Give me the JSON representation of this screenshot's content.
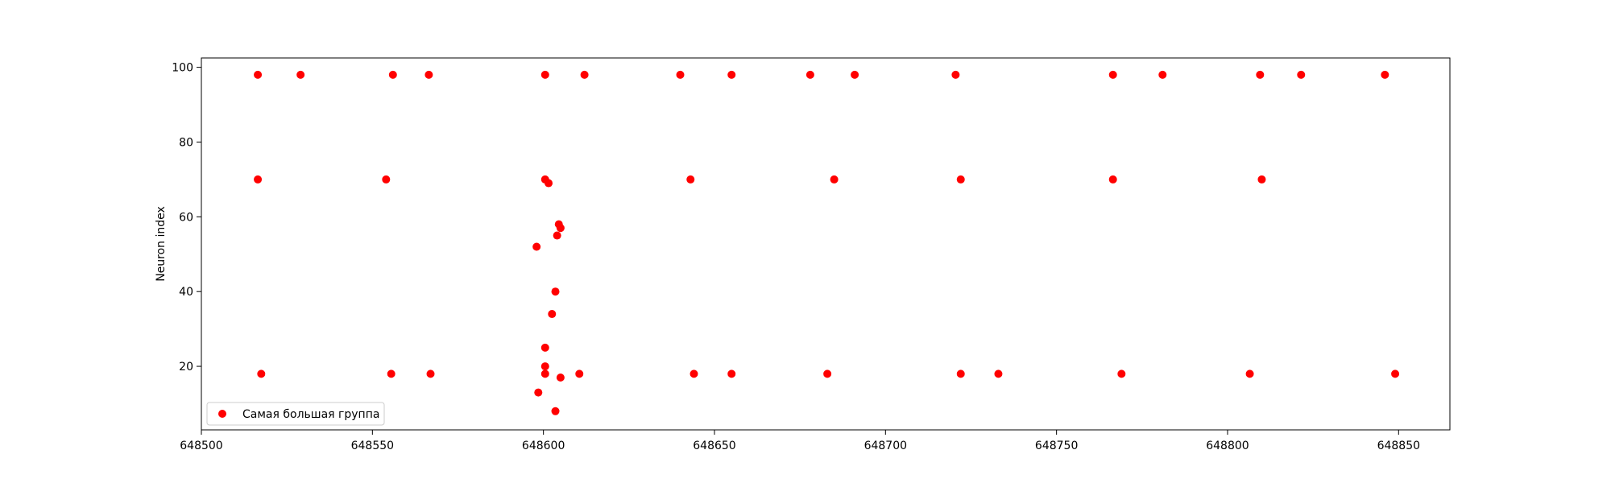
{
  "chart_data": {
    "type": "scatter",
    "title": "",
    "xlabel": "",
    "ylabel": "Neuron index",
    "xlim": [
      648500,
      648865
    ],
    "ylim": [
      3,
      102.5
    ],
    "xticks": [
      648500,
      648550,
      648600,
      648650,
      648700,
      648750,
      648800,
      648850
    ],
    "yticks": [
      20,
      40,
      60,
      80,
      100
    ],
    "grid": false,
    "legend": {
      "position": "lower-left",
      "entries": [
        {
          "label": "Самая большая группа",
          "color": "#ff0000"
        }
      ]
    },
    "series": [
      {
        "name": "Самая большая группа",
        "color": "#ff0000",
        "points": [
          [
            648516.5,
            98
          ],
          [
            648529,
            98
          ],
          [
            648556,
            98
          ],
          [
            648566.5,
            98
          ],
          [
            648600.5,
            98
          ],
          [
            648612,
            98
          ],
          [
            648640,
            98
          ],
          [
            648655,
            98
          ],
          [
            648678,
            98
          ],
          [
            648691,
            98
          ],
          [
            648720.5,
            98
          ],
          [
            648766.5,
            98
          ],
          [
            648781,
            98
          ],
          [
            648809.5,
            98
          ],
          [
            648821.5,
            98
          ],
          [
            648846,
            98
          ],
          [
            648516.5,
            70
          ],
          [
            648554,
            70
          ],
          [
            648600.5,
            70
          ],
          [
            648601.5,
            69
          ],
          [
            648643,
            70
          ],
          [
            648685,
            70
          ],
          [
            648722,
            70
          ],
          [
            648766.5,
            70
          ],
          [
            648810,
            70
          ],
          [
            648604.5,
            58
          ],
          [
            648605,
            57
          ],
          [
            648604,
            55
          ],
          [
            648598,
            52
          ],
          [
            648603.5,
            40
          ],
          [
            648602.5,
            34
          ],
          [
            648600.5,
            25
          ],
          [
            648600.5,
            20
          ],
          [
            648517.5,
            18
          ],
          [
            648555.5,
            18
          ],
          [
            648567,
            18
          ],
          [
            648600.5,
            18
          ],
          [
            648610.5,
            18
          ],
          [
            648644,
            18
          ],
          [
            648655,
            18
          ],
          [
            648683,
            18
          ],
          [
            648722,
            18
          ],
          [
            648733,
            18
          ],
          [
            648769,
            18
          ],
          [
            648806.5,
            18
          ],
          [
            648849,
            18
          ],
          [
            648605,
            17
          ],
          [
            648598.5,
            13
          ],
          [
            648603.5,
            8
          ]
        ]
      }
    ]
  }
}
